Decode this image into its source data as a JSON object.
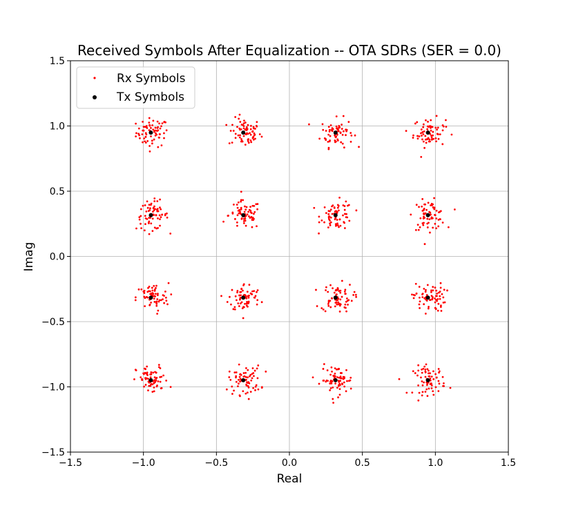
{
  "chart_data": {
    "type": "scatter",
    "title": "Received Symbols After Equalization -- OTA SDRs (SER = 0.0)",
    "xlabel": "Real",
    "ylabel": "Imag",
    "xlim": [
      -1.5,
      1.5
    ],
    "ylim": [
      -1.5,
      1.5
    ],
    "xticks": [
      -1.5,
      -1.0,
      -0.5,
      0.0,
      0.5,
      1.0,
      1.5
    ],
    "yticks": [
      -1.5,
      -1.0,
      -0.5,
      0.0,
      0.5,
      1.0,
      1.5
    ],
    "xtick_labels": [
      "−1.5",
      "−1.0",
      "−0.5",
      "0.0",
      "0.5",
      "1.0",
      "1.5"
    ],
    "ytick_labels": [
      "−1.5",
      "−1.0",
      "−0.5",
      "0.0",
      "0.5",
      "1.0",
      "1.5"
    ],
    "grid": true,
    "legend_position": "top-left",
    "rx_spread": 0.055,
    "rx_points_per_symbol": 70,
    "series": [
      {
        "name": "Rx Symbols",
        "color": "#ff0000",
        "marker": "small-dot"
      },
      {
        "name": "Tx Symbols",
        "color": "#000000",
        "marker": "dot",
        "points": [
          {
            "x": -0.949,
            "y": 0.949
          },
          {
            "x": -0.316,
            "y": 0.949
          },
          {
            "x": 0.316,
            "y": 0.949
          },
          {
            "x": 0.949,
            "y": 0.949
          },
          {
            "x": -0.949,
            "y": 0.316
          },
          {
            "x": -0.316,
            "y": 0.316
          },
          {
            "x": 0.316,
            "y": 0.316
          },
          {
            "x": 0.949,
            "y": 0.316
          },
          {
            "x": -0.949,
            "y": -0.316
          },
          {
            "x": -0.316,
            "y": -0.316
          },
          {
            "x": 0.316,
            "y": -0.316
          },
          {
            "x": 0.949,
            "y": -0.316
          },
          {
            "x": -0.949,
            "y": -0.949
          },
          {
            "x": -0.316,
            "y": -0.949
          },
          {
            "x": 0.316,
            "y": -0.949
          },
          {
            "x": 0.949,
            "y": -0.949
          }
        ]
      }
    ]
  }
}
